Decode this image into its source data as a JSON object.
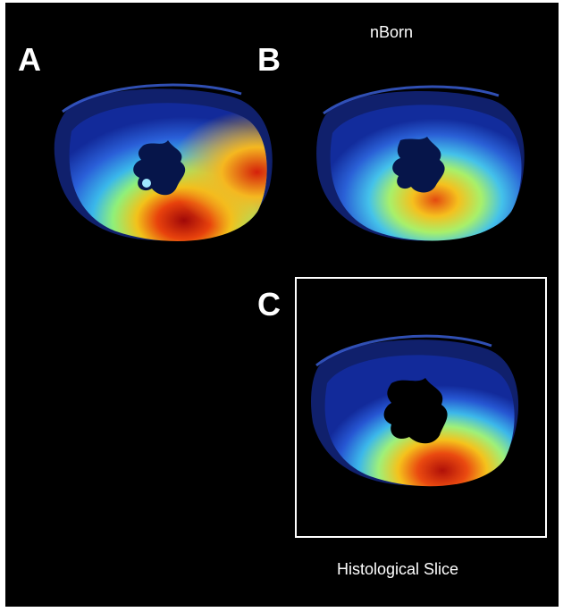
{
  "figure": {
    "panels": [
      {
        "label": "A",
        "heatmap": "jet",
        "name": "cardiac-cross-section-a"
      },
      {
        "label": "B",
        "heatmap": "jet",
        "name": "cardiac-cross-section-b"
      },
      {
        "label": "C",
        "heatmap": "jet",
        "name": "cardiac-cross-section-c"
      }
    ],
    "caption_top": "nBorn",
    "caption_bottom": "Histological Slice"
  },
  "colors": {
    "background": "#000000",
    "text": "#ffffff",
    "frame": "#ffffff",
    "jet_low": "#0a1a8c",
    "jet_mid": "#35c6e8",
    "jet_high": "#b00a08"
  }
}
